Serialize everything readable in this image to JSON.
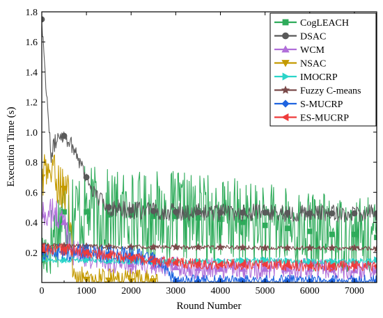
{
  "chart_data": {
    "type": "line",
    "title": "",
    "xlabel": "Round Number",
    "ylabel": "Execution Time (s)",
    "xlim": [
      0,
      7500
    ],
    "ylim": [
      0,
      1.8
    ],
    "xticks": [
      0,
      1000,
      2000,
      3000,
      4000,
      5000,
      6000,
      7000
    ],
    "yticks": [
      0.2,
      0.4,
      0.6,
      0.8,
      1.0,
      1.2,
      1.4,
      1.6,
      1.8
    ],
    "ytick_labels": [
      "0.2",
      "0.4",
      "0.6",
      "0.8",
      "1.0",
      "1.2",
      "1.4",
      "1.6",
      "1.8"
    ],
    "grid": false,
    "legend_position": "top-right",
    "series": [
      {
        "name": "CogLEACH",
        "color": "#2eab5a",
        "marker": "square",
        "x": [
          0,
          500,
          1000,
          1500,
          2000,
          2500,
          3000,
          3500,
          4000,
          4500,
          5000,
          5500,
          6000,
          6500,
          7000,
          7500
        ],
        "y": [
          0.15,
          0.47,
          0.47,
          0.45,
          0.45,
          0.44,
          0.44,
          0.43,
          0.42,
          0.4,
          0.38,
          0.36,
          0.34,
          0.32,
          0.32,
          0.3
        ],
        "spread": 0.32
      },
      {
        "name": "DSAC",
        "color": "#595959",
        "marker": "circle",
        "x": [
          0,
          200,
          400,
          600,
          800,
          1000,
          1200,
          1500,
          2000,
          3000,
          4000,
          5000,
          6000,
          7000,
          7500
        ],
        "y": [
          1.75,
          0.85,
          1.0,
          0.95,
          0.85,
          0.7,
          0.58,
          0.5,
          0.48,
          0.47,
          0.465,
          0.465,
          0.46,
          0.46,
          0.46
        ],
        "spread": 0.06
      },
      {
        "name": "WCM",
        "color": "#b06ed9",
        "marker": "triangle-up",
        "x": [
          0,
          300,
          500,
          700,
          1000,
          1500,
          2000,
          2500,
          3000,
          4000,
          5000,
          6000,
          7000,
          7500
        ],
        "y": [
          0.45,
          0.45,
          0.4,
          0.2,
          0.18,
          0.14,
          0.12,
          0.11,
          0.1,
          0.09,
          0.09,
          0.09,
          0.08,
          0.08
        ],
        "spread": 0.12
      },
      {
        "name": "NSAC",
        "color": "#c49a00",
        "marker": "triangle-down",
        "x": [
          0,
          200,
          400,
          600,
          700,
          1000,
          2000,
          2600
        ],
        "y": [
          0.7,
          0.75,
          0.65,
          0.6,
          0.05,
          0.02,
          0.01,
          0.01
        ],
        "spread": 0.15
      },
      {
        "name": "IMOCRP",
        "color": "#2ad4c9",
        "marker": "triangle-right",
        "x": [
          0,
          1000,
          2000,
          3000,
          4000,
          5000,
          6000,
          7000,
          7500
        ],
        "y": [
          0.15,
          0.15,
          0.14,
          0.14,
          0.14,
          0.15,
          0.14,
          0.14,
          0.15
        ],
        "spread": 0.03
      },
      {
        "name": "Fuzzy C-means",
        "color": "#7a4a4a",
        "marker": "star",
        "x": [
          0,
          1000,
          2000,
          3000,
          4000,
          5000,
          6000,
          7000,
          7500
        ],
        "y": [
          0.25,
          0.24,
          0.235,
          0.235,
          0.235,
          0.23,
          0.23,
          0.23,
          0.225
        ],
        "spread": 0.02
      },
      {
        "name": "S-MUCRP",
        "color": "#1f64e0",
        "marker": "diamond",
        "x": [
          0,
          1000,
          2000,
          2600,
          3000,
          4000,
          5000,
          6000,
          7000,
          7500
        ],
        "y": [
          0.2,
          0.2,
          0.18,
          0.15,
          0.01,
          0.01,
          0.01,
          0.01,
          0.01,
          0.01
        ],
        "spread": 0.08
      },
      {
        "name": "ES-MUCRP",
        "color": "#ee3b3b",
        "marker": "triangle-left",
        "x": [
          0,
          500,
          1000,
          1500,
          2000,
          2500,
          3000,
          4000,
          5000,
          6000,
          7000,
          7500
        ],
        "y": [
          0.22,
          0.22,
          0.2,
          0.18,
          0.16,
          0.14,
          0.13,
          0.12,
          0.12,
          0.11,
          0.11,
          0.11
        ],
        "spread": 0.06
      }
    ]
  }
}
